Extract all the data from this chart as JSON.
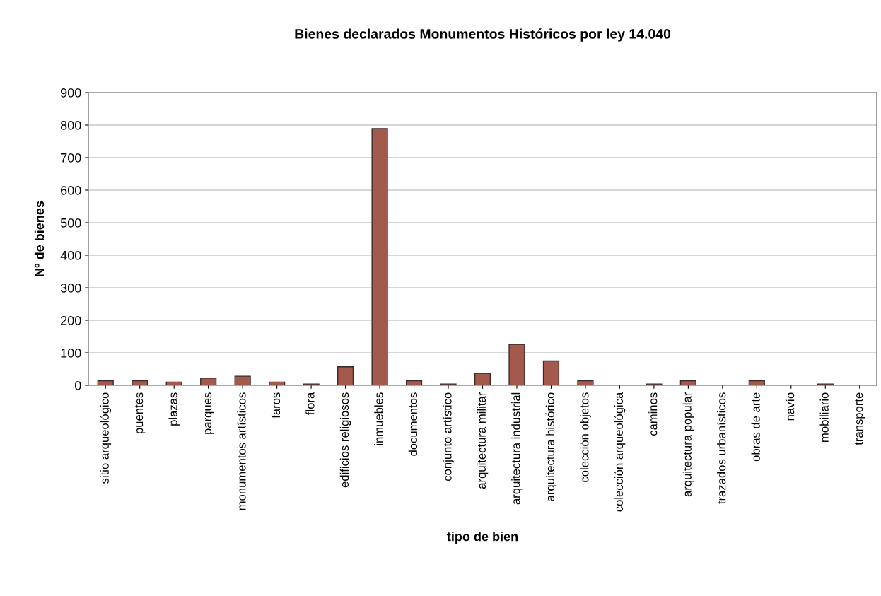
{
  "chart_data": {
    "type": "bar",
    "title": "Bienes declarados Monumentos Históricos por ley 14.040",
    "xlabel": "tipo de bien",
    "ylabel": "Nº de bienes",
    "categories": [
      "sitio arqueológico",
      "puentes",
      "plazas",
      "parques",
      "monumentos artísticos",
      "faros",
      "flora",
      "edificios religiosos",
      "inmuebles",
      "documentos",
      "conjunto artístico",
      "arquitectura militar",
      "arquitectura industrial",
      "arquitectura histórico",
      "colección objetos",
      "colección arqueológica",
      "caminos",
      "arquitectura popular",
      "trazados urbanísticos",
      "obras de arte",
      "navío",
      "mobiliario",
      "transporte"
    ],
    "values": [
      14,
      14,
      10,
      22,
      28,
      10,
      4,
      57,
      789,
      14,
      4,
      37,
      126,
      75,
      14,
      0,
      4,
      14,
      0,
      14,
      0,
      4,
      0
    ],
    "color": "#a35a4c",
    "ylim": [
      0,
      900
    ],
    "yticks": [
      0,
      100,
      200,
      300,
      400,
      500,
      600,
      700,
      800,
      900
    ],
    "grid": "y",
    "legend": false
  }
}
